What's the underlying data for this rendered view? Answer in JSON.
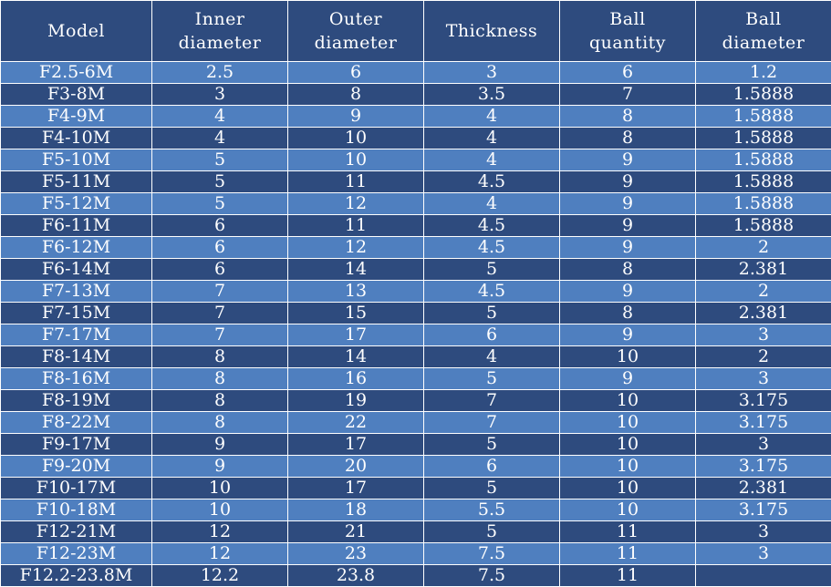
{
  "table": {
    "headers": [
      [
        "Model"
      ],
      [
        "Inner",
        "diameter"
      ],
      [
        "Outer",
        "diameter"
      ],
      [
        "Thickness"
      ],
      [
        "Ball",
        "quantity"
      ],
      [
        "Ball",
        "diameter"
      ]
    ],
    "rows": [
      [
        "F2.5-6M",
        "2.5",
        "6",
        "3",
        "6",
        "1.2"
      ],
      [
        "F3-8M",
        "3",
        "8",
        "3.5",
        "7",
        "1.5888"
      ],
      [
        "F4-9M",
        "4",
        "9",
        "4",
        "8",
        "1.5888"
      ],
      [
        "F4-10M",
        "4",
        "10",
        "4",
        "8",
        "1.5888"
      ],
      [
        "F5-10M",
        "5",
        "10",
        "4",
        "9",
        "1.5888"
      ],
      [
        "F5-11M",
        "5",
        "11",
        "4.5",
        "9",
        "1.5888"
      ],
      [
        "F5-12M",
        "5",
        "12",
        "4",
        "9",
        "1.5888"
      ],
      [
        "F6-11M",
        "6",
        "11",
        "4.5",
        "9",
        "1.5888"
      ],
      [
        "F6-12M",
        "6",
        "12",
        "4.5",
        "9",
        "2"
      ],
      [
        "F6-14M",
        "6",
        "14",
        "5",
        "8",
        "2.381"
      ],
      [
        "F7-13M",
        "7",
        "13",
        "4.5",
        "9",
        "2"
      ],
      [
        "F7-15M",
        "7",
        "15",
        "5",
        "8",
        "2.381"
      ],
      [
        "F7-17M",
        "7",
        "17",
        "6",
        "9",
        "3"
      ],
      [
        "F8-14M",
        "8",
        "14",
        "4",
        "10",
        "2"
      ],
      [
        "F8-16M",
        "8",
        "16",
        "5",
        "9",
        "3"
      ],
      [
        "F8-19M",
        "8",
        "19",
        "7",
        "10",
        "3.175"
      ],
      [
        "F8-22M",
        "8",
        "22",
        "7",
        "10",
        "3.175"
      ],
      [
        "F9-17M",
        "9",
        "17",
        "5",
        "10",
        "3"
      ],
      [
        "F9-20M",
        "9",
        "20",
        "6",
        "10",
        "3.175"
      ],
      [
        "F10-17M",
        "10",
        "17",
        "5",
        "10",
        "2.381"
      ],
      [
        "F10-18M",
        "10",
        "18",
        "5.5",
        "10",
        "3.175"
      ],
      [
        "F12-21M",
        "12",
        "21",
        "5",
        "11",
        "3"
      ],
      [
        "F12-23M",
        "12",
        "23",
        "7.5",
        "11",
        "3"
      ],
      [
        "F12.2-23.8M",
        "12.2",
        "23.8",
        "7.5",
        "11",
        ""
      ]
    ]
  },
  "colors": {
    "header_bg": "#2e4b7e",
    "row_light": "#4f7fbf",
    "row_dark": "#2e4b7e",
    "text": "#ffffff"
  }
}
